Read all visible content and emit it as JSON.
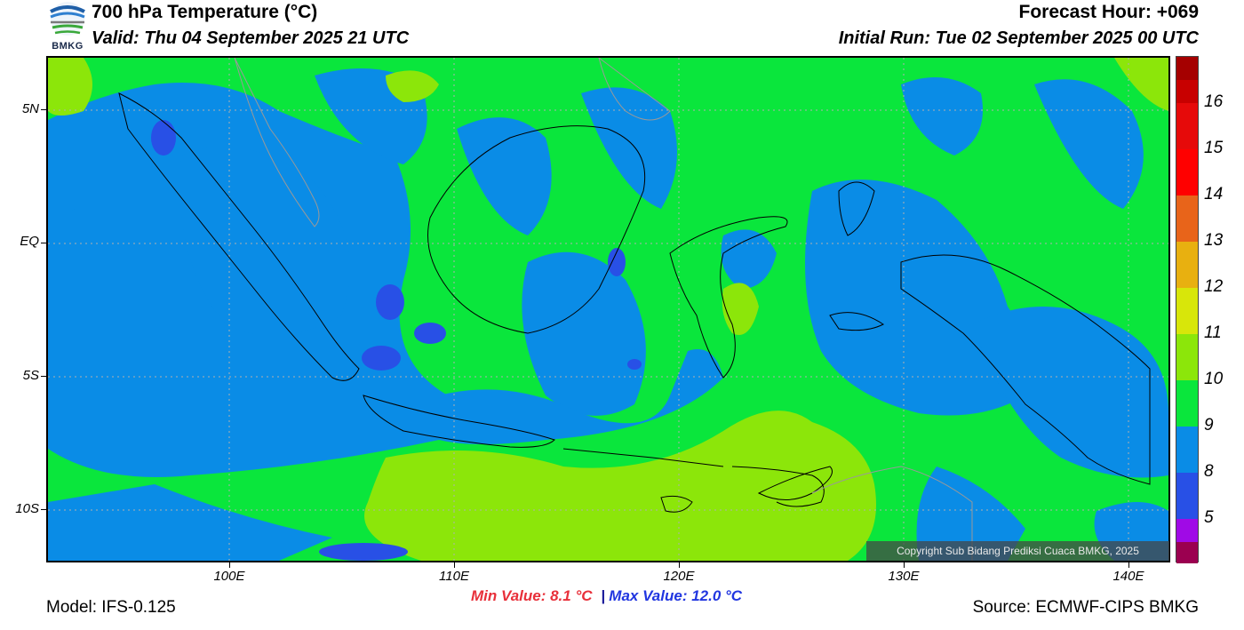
{
  "header": {
    "title": "700 hPa Temperature (°C)",
    "valid": "Valid: Thu 04 September 2025 21 UTC",
    "forecast_hour": "Forecast Hour: +069",
    "initial_run": "Initial Run: Tue 02 September 2025 00 UTC",
    "logo_text": "BMKG"
  },
  "map": {
    "lat_labels": [
      "5N",
      "EQ",
      "5S",
      "10S"
    ],
    "lon_labels": [
      "100E",
      "110E",
      "120E",
      "130E",
      "140E"
    ]
  },
  "colorbar": {
    "labels": [
      "16",
      "15",
      "14",
      "13",
      "12",
      "11",
      "10",
      "9",
      "8",
      "5"
    ],
    "colors": [
      "#a50000",
      "#e60a0a",
      "#ff2020",
      "#e8641a",
      "#e8b010",
      "#d8e60a",
      "#8ce60a",
      "#0ae63c",
      "#0a8ce6",
      "#2850e6",
      "#a00ae6",
      "#9b0050"
    ]
  },
  "copyright": "Copyright Sub Bidang Prediksi Cuaca BMKG, 2025",
  "stats": {
    "min": "Min Value: 8.1 °C",
    "separator": "|",
    "max": "Max Value: 12.0 °C"
  },
  "footer": {
    "model": "Model: IFS-0.125",
    "source": "Source: ECMWF-CIPS BMKG"
  }
}
